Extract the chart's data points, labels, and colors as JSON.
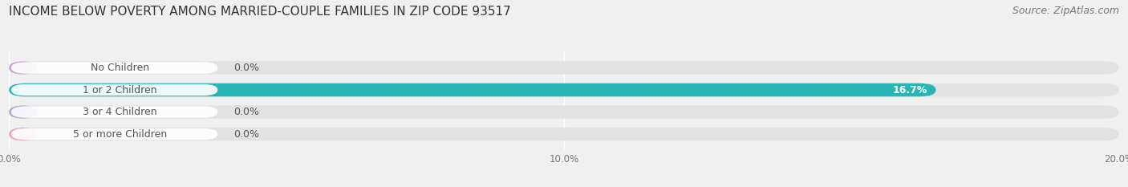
{
  "title": "INCOME BELOW POVERTY AMONG MARRIED-COUPLE FAMILIES IN ZIP CODE 93517",
  "source": "Source: ZipAtlas.com",
  "categories": [
    "No Children",
    "1 or 2 Children",
    "3 or 4 Children",
    "5 or more Children"
  ],
  "values": [
    0.0,
    16.7,
    0.0,
    0.0
  ],
  "bar_colors": [
    "#c9a0cc",
    "#29b5b5",
    "#a8a8d8",
    "#f5a0b8"
  ],
  "xlim": [
    0,
    20.0
  ],
  "xticks": [
    0.0,
    10.0,
    20.0
  ],
  "xtick_labels": [
    "0.0%",
    "10.0%",
    "20.0%"
  ],
  "background_color": "#f0f0f0",
  "bar_background_color": "#e2e2e2",
  "label_bg_color": "#ffffff",
  "title_fontsize": 11,
  "source_fontsize": 9,
  "bar_height": 0.6,
  "bar_label_fontsize": 9,
  "category_fontsize": 9,
  "label_text_color": "#555555",
  "value_text_color": "#555555",
  "value_text_color_on_bar": "#ffffff"
}
